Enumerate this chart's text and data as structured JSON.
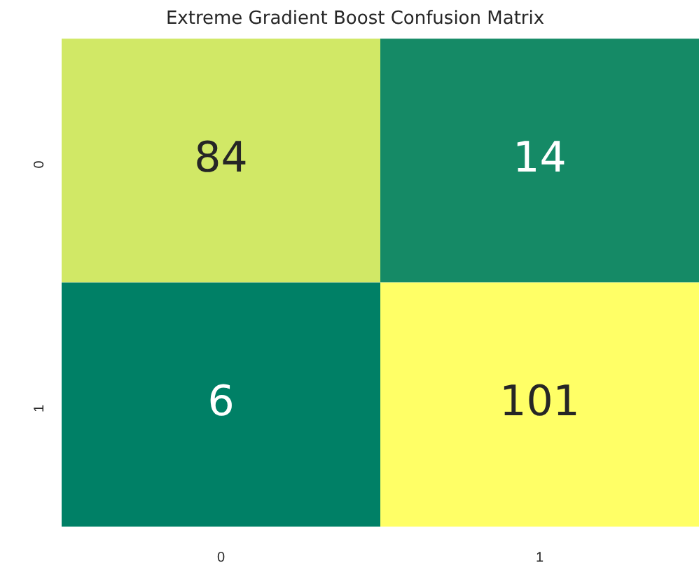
{
  "chart_data": {
    "type": "heatmap",
    "title": "Extreme Gradient Boost Confusion Matrix",
    "categories": [
      "0",
      "1"
    ],
    "y_categories": [
      "0",
      "1"
    ],
    "cells": [
      [
        84,
        14
      ],
      [
        6,
        101
      ]
    ],
    "data_labels": true
  }
}
